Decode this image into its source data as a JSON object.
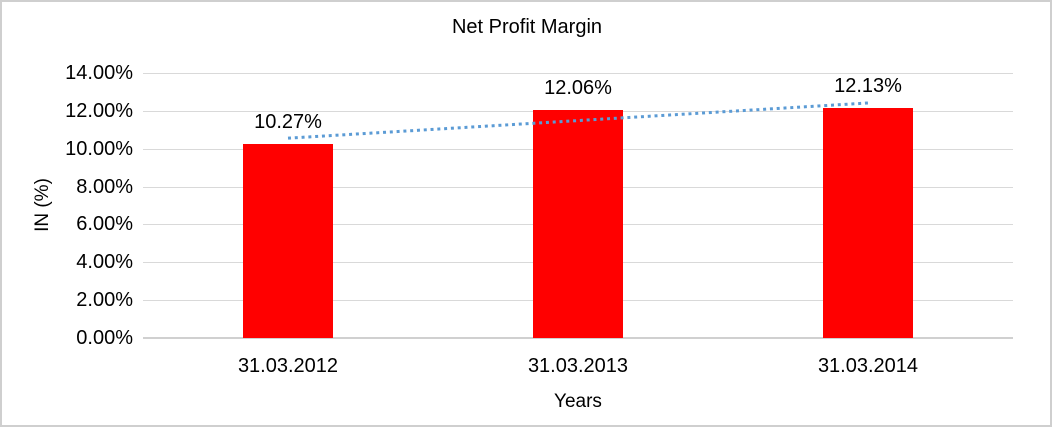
{
  "window": {
    "background": "#FFFFFF",
    "border_color": "#CFCFCF"
  },
  "chart_data": {
    "type": "bar",
    "title": "Net Profit Margin",
    "xlabel": "Years",
    "ylabel": "IN (%)",
    "categories": [
      "31.03.2012",
      "31.03.2013",
      "31.03.2014"
    ],
    "values": [
      10.27,
      12.06,
      12.13
    ],
    "data_labels": [
      "10.27%",
      "12.06%",
      "12.13%"
    ],
    "y_ticks": {
      "values": [
        0,
        2,
        4,
        6,
        8,
        10,
        12,
        14
      ],
      "labels": [
        "0.00%",
        "2.00%",
        "4.00%",
        "6.00%",
        "8.00%",
        "10.00%",
        "12.00%",
        "14.00%"
      ]
    },
    "ylim": [
      0,
      14
    ],
    "grid": true,
    "legend": "none",
    "series_name": "Net Profit Margin",
    "bar_color": "#FF0000",
    "trendline": {
      "type": "linear",
      "style": "dotted",
      "color": "#5B9BD5"
    },
    "gridline_color": "#D9D9D9",
    "axis_line_color": "#D0D0D0",
    "text_color": "#000000"
  }
}
